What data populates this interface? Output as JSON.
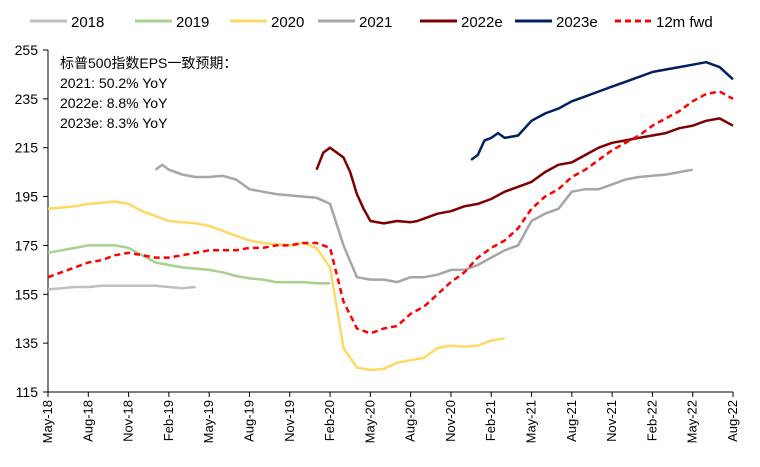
{
  "chart_data": {
    "type": "line",
    "title": "",
    "xlabel": "",
    "ylabel": "",
    "ylim": [
      115,
      255
    ],
    "yticks": [
      115,
      135,
      155,
      175,
      195,
      215,
      235,
      255
    ],
    "xticks": [
      "May-18",
      "Aug-18",
      "Nov-18",
      "Feb-19",
      "May-19",
      "Aug-19",
      "Nov-19",
      "Feb-20",
      "May-20",
      "Aug-20",
      "Nov-20",
      "Feb-21",
      "May-21",
      "Aug-21",
      "Nov-21",
      "Feb-22",
      "May-22",
      "Aug-22"
    ],
    "xrange_months": [
      0,
      51
    ],
    "grid": false,
    "legend_position": "top",
    "annotation": [
      "标普500指数EPS一致预期：",
      "2021: 50.2% YoY",
      "2022e: 8.8% YoY",
      "2023e: 8.3% YoY"
    ],
    "series": [
      {
        "name": "2018",
        "color": "#bfbfbf",
        "dashed": false,
        "points": [
          [
            0,
            157
          ],
          [
            1,
            157.5
          ],
          [
            2,
            158
          ],
          [
            3,
            158
          ],
          [
            4,
            158.5
          ],
          [
            5,
            158.5
          ],
          [
            6,
            158.5
          ],
          [
            7,
            158.5
          ],
          [
            8,
            158.5
          ],
          [
            9,
            158
          ],
          [
            10,
            157.5
          ],
          [
            11,
            158
          ]
        ]
      },
      {
        "name": "2019",
        "color": "#a9d18e",
        "dashed": false,
        "points": [
          [
            0,
            172
          ],
          [
            1,
            173
          ],
          [
            2,
            174
          ],
          [
            3,
            175
          ],
          [
            4,
            175
          ],
          [
            5,
            175
          ],
          [
            6,
            174
          ],
          [
            7,
            171
          ],
          [
            8,
            168
          ],
          [
            9,
            167
          ],
          [
            10,
            166
          ],
          [
            11,
            165.5
          ],
          [
            12,
            165
          ],
          [
            13,
            164
          ],
          [
            14,
            162.5
          ],
          [
            15,
            161.5
          ],
          [
            16,
            161
          ],
          [
            17,
            160
          ],
          [
            18,
            160
          ],
          [
            19,
            160
          ],
          [
            20,
            159.5
          ],
          [
            21,
            159.5
          ]
        ]
      },
      {
        "name": "2020",
        "color": "#ffd966",
        "dashed": false,
        "points": [
          [
            0,
            190
          ],
          [
            1,
            190.5
          ],
          [
            2,
            191
          ],
          [
            3,
            192
          ],
          [
            4,
            192.5
          ],
          [
            5,
            193
          ],
          [
            6,
            192
          ],
          [
            7,
            189
          ],
          [
            8,
            187
          ],
          [
            9,
            185
          ],
          [
            10,
            184.5
          ],
          [
            11,
            184
          ],
          [
            12,
            183
          ],
          [
            13,
            181
          ],
          [
            14,
            179
          ],
          [
            15,
            177
          ],
          [
            16,
            176
          ],
          [
            17,
            175.5
          ],
          [
            18,
            175
          ],
          [
            19,
            176
          ],
          [
            20,
            174
          ],
          [
            21,
            166
          ],
          [
            22,
            133
          ],
          [
            23,
            125
          ],
          [
            24,
            124
          ],
          [
            25,
            124.5
          ],
          [
            26,
            127
          ],
          [
            27,
            128
          ],
          [
            28,
            129
          ],
          [
            29,
            133
          ],
          [
            30,
            134
          ],
          [
            31,
            133.5
          ],
          [
            32,
            134
          ],
          [
            33,
            136
          ],
          [
            34,
            137
          ]
        ]
      },
      {
        "name": "2021",
        "color": "#a6a6a6",
        "dashed": false,
        "points": [
          [
            8,
            206
          ],
          [
            8.5,
            208
          ],
          [
            9,
            206
          ],
          [
            10,
            204
          ],
          [
            11,
            203
          ],
          [
            12,
            203
          ],
          [
            13,
            203.5
          ],
          [
            14,
            202
          ],
          [
            15,
            198
          ],
          [
            16,
            197
          ],
          [
            17,
            196
          ],
          [
            18,
            195.5
          ],
          [
            19,
            195
          ],
          [
            20,
            194.5
          ],
          [
            21,
            192
          ],
          [
            22,
            175
          ],
          [
            23,
            162
          ],
          [
            24,
            161
          ],
          [
            25,
            161
          ],
          [
            26,
            160
          ],
          [
            27,
            162
          ],
          [
            28,
            162
          ],
          [
            29,
            163
          ],
          [
            30,
            165
          ],
          [
            31,
            165
          ],
          [
            32,
            167
          ],
          [
            33,
            170
          ],
          [
            34,
            173
          ],
          [
            35,
            175
          ],
          [
            36,
            185
          ],
          [
            37,
            188
          ],
          [
            38,
            190
          ],
          [
            39,
            197
          ],
          [
            40,
            198
          ],
          [
            41,
            198
          ],
          [
            42,
            200
          ],
          [
            43,
            202
          ],
          [
            44,
            203
          ],
          [
            45,
            203.5
          ],
          [
            46,
            204
          ],
          [
            47,
            205
          ],
          [
            48,
            206
          ]
        ]
      },
      {
        "name": "2022e",
        "color": "#7f0000",
        "dashed": false,
        "points": [
          [
            20,
            206
          ],
          [
            20.5,
            213
          ],
          [
            21,
            215
          ],
          [
            21.5,
            213
          ],
          [
            22,
            211
          ],
          [
            22.5,
            205
          ],
          [
            23,
            196
          ],
          [
            23.5,
            190
          ],
          [
            24,
            185
          ],
          [
            25,
            184
          ],
          [
            26,
            185
          ],
          [
            27,
            184.5
          ],
          [
            27.5,
            185
          ],
          [
            28,
            186
          ],
          [
            29,
            188
          ],
          [
            30,
            189
          ],
          [
            31,
            191
          ],
          [
            32,
            192
          ],
          [
            33,
            194
          ],
          [
            34,
            197
          ],
          [
            35,
            199
          ],
          [
            36,
            201
          ],
          [
            37,
            205
          ],
          [
            38,
            208
          ],
          [
            39,
            209
          ],
          [
            40,
            212
          ],
          [
            41,
            215
          ],
          [
            42,
            217
          ],
          [
            43,
            218
          ],
          [
            44,
            219
          ],
          [
            45,
            220
          ],
          [
            46,
            221
          ],
          [
            47,
            223
          ],
          [
            48,
            224
          ],
          [
            49,
            226
          ],
          [
            50,
            227
          ],
          [
            51,
            224
          ]
        ]
      },
      {
        "name": "2023e",
        "color": "#002060",
        "dashed": false,
        "points": [
          [
            31.5,
            210
          ],
          [
            32,
            212
          ],
          [
            32.5,
            218
          ],
          [
            33,
            219
          ],
          [
            33.5,
            221
          ],
          [
            34,
            219
          ],
          [
            35,
            220
          ],
          [
            36,
            226
          ],
          [
            37,
            229
          ],
          [
            38,
            231
          ],
          [
            39,
            234
          ],
          [
            40,
            236
          ],
          [
            41,
            238
          ],
          [
            42,
            240
          ],
          [
            43,
            242
          ],
          [
            44,
            244
          ],
          [
            45,
            246
          ],
          [
            46,
            247
          ],
          [
            47,
            248
          ],
          [
            48,
            249
          ],
          [
            49,
            250
          ],
          [
            50,
            248
          ],
          [
            51,
            243
          ]
        ]
      },
      {
        "name": "12m fwd",
        "color": "#ff0000",
        "dashed": true,
        "points": [
          [
            0,
            162
          ],
          [
            1,
            164
          ],
          [
            2,
            166
          ],
          [
            3,
            168
          ],
          [
            4,
            169
          ],
          [
            5,
            171
          ],
          [
            6,
            172
          ],
          [
            7,
            171
          ],
          [
            8,
            170
          ],
          [
            9,
            170
          ],
          [
            10,
            171
          ],
          [
            11,
            172
          ],
          [
            12,
            173
          ],
          [
            13,
            173
          ],
          [
            14,
            173
          ],
          [
            15,
            174
          ],
          [
            16,
            174
          ],
          [
            17,
            175
          ],
          [
            18,
            175
          ],
          [
            19,
            176
          ],
          [
            20,
            176
          ],
          [
            21,
            174
          ],
          [
            22,
            152
          ],
          [
            23,
            141
          ],
          [
            24,
            139
          ],
          [
            25,
            141
          ],
          [
            26,
            142
          ],
          [
            27,
            147
          ],
          [
            28,
            150
          ],
          [
            29,
            155
          ],
          [
            30,
            160
          ],
          [
            31,
            164
          ],
          [
            32,
            170
          ],
          [
            33,
            174
          ],
          [
            34,
            177
          ],
          [
            35,
            182
          ],
          [
            36,
            190
          ],
          [
            37,
            195
          ],
          [
            38,
            198
          ],
          [
            39,
            203
          ],
          [
            40,
            206
          ],
          [
            41,
            210
          ],
          [
            42,
            214
          ],
          [
            43,
            217
          ],
          [
            44,
            220
          ],
          [
            45,
            224
          ],
          [
            46,
            227
          ],
          [
            47,
            230
          ],
          [
            48,
            234
          ],
          [
            49,
            237
          ],
          [
            50,
            238
          ],
          [
            51,
            235
          ]
        ]
      }
    ]
  }
}
